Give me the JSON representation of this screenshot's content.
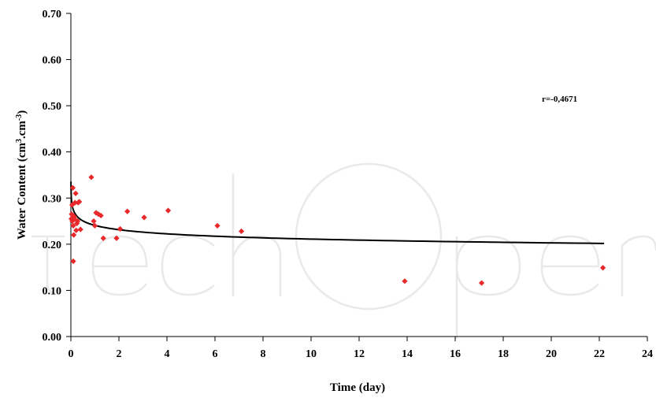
{
  "chart_data": {
    "type": "scatter",
    "xlabel": "Time (day)",
    "ylabel_main": "Water Content (cm",
    "ylabel_exp1": "3",
    "ylabel_mid": ".cm",
    "ylabel_exp2": "-3",
    "ylabel_end": ")",
    "xlim": [
      0,
      24
    ],
    "ylim": [
      0,
      0.7
    ],
    "x_ticks": [
      0,
      2,
      4,
      6,
      8,
      10,
      12,
      14,
      16,
      18,
      20,
      22,
      24
    ],
    "x_tick_labels": [
      "0",
      "2",
      "4",
      "6",
      "8",
      "10",
      "12",
      "14",
      "16",
      "18",
      "20",
      "22",
      "24"
    ],
    "y_ticks": [
      0,
      0.1,
      0.2,
      0.3,
      0.4,
      0.5,
      0.6,
      0.7
    ],
    "y_tick_labels": [
      "0.00",
      "0.10",
      "0.20",
      "0.30",
      "0.40",
      "0.50",
      "0.60",
      "0.70"
    ],
    "annotation": "r=-0,4671",
    "grid": false,
    "marker_color": "#e8282a",
    "trend_color": "#000000",
    "series": [
      {
        "points": [
          [
            0.02,
            0.255
          ],
          [
            0.03,
            0.265
          ],
          [
            0.05,
            0.285
          ],
          [
            0.06,
            0.25
          ],
          [
            0.08,
            0.322
          ],
          [
            0.1,
            0.163
          ],
          [
            0.1,
            0.24
          ],
          [
            0.12,
            0.22
          ],
          [
            0.14,
            0.26
          ],
          [
            0.15,
            0.255
          ],
          [
            0.17,
            0.29
          ],
          [
            0.2,
            0.31
          ],
          [
            0.22,
            0.23
          ],
          [
            0.25,
            0.245
          ],
          [
            0.28,
            0.25
          ],
          [
            0.3,
            0.29
          ],
          [
            0.35,
            0.292
          ],
          [
            0.4,
            0.232
          ],
          [
            0.85,
            0.345
          ],
          [
            0.95,
            0.25
          ],
          [
            1.0,
            0.24
          ],
          [
            1.05,
            0.268
          ],
          [
            1.15,
            0.265
          ],
          [
            1.25,
            0.262
          ],
          [
            1.35,
            0.213
          ],
          [
            1.9,
            0.213
          ],
          [
            2.05,
            0.233
          ],
          [
            2.35,
            0.271
          ],
          [
            3.05,
            0.258
          ],
          [
            4.05,
            0.273
          ],
          [
            6.1,
            0.24
          ],
          [
            7.1,
            0.228
          ],
          [
            13.9,
            0.12
          ],
          [
            17.1,
            0.116
          ],
          [
            22.15,
            0.149
          ]
        ]
      }
    ],
    "trendline": {
      "type": "power",
      "a": 0.2408,
      "b": -0.0572,
      "x_range": [
        0.003,
        22.2
      ]
    }
  }
}
